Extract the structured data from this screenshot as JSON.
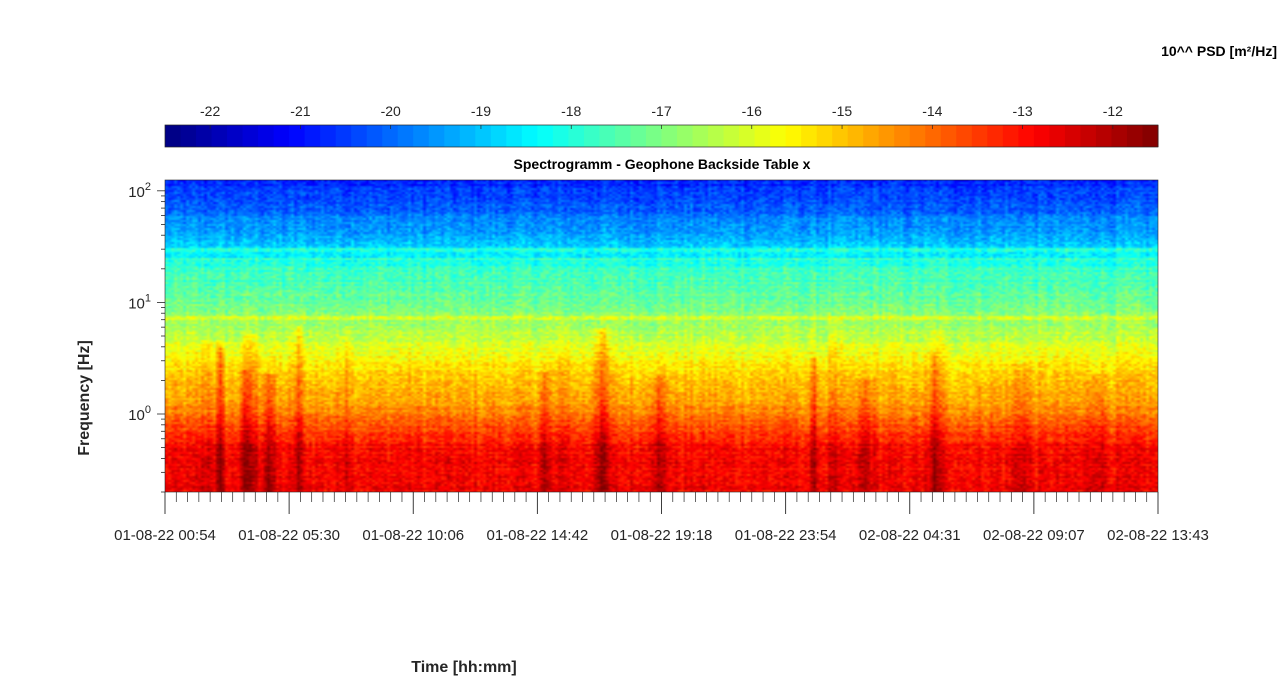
{
  "chart_data": {
    "type": "heatmap",
    "title": "Spectrogramm - Geophone Backside Table x",
    "xlabel": "Time [hh:mm]",
    "ylabel": "Frequency [Hz]",
    "colorbar_label": "10^^ PSD [m²/Hz]",
    "colormap": "jet",
    "y_scale": "log",
    "ylim": [
      0.2,
      125
    ],
    "y_ticks": [
      {
        "value": 1,
        "base": "10",
        "exp": "0"
      },
      {
        "value": 10,
        "base": "10",
        "exp": "1"
      },
      {
        "value": 100,
        "base": "10",
        "exp": "2"
      }
    ],
    "x_ticks": [
      "01-08-22  00:54",
      "01-08-22  05:30",
      "01-08-22  10:06",
      "01-08-22  14:42",
      "01-08-22  19:18",
      "01-08-22  23:54",
      "02-08-22  04:31",
      "02-08-22  09:07",
      "02-08-22  13:43"
    ],
    "color_range": [
      -22.5,
      -11.5
    ],
    "colorbar_ticks": [
      -22,
      -21,
      -20,
      -19,
      -18,
      -17,
      -16,
      -15,
      -14,
      -13,
      -12
    ],
    "psd_profile_log10": [
      {
        "freq_hz": 0.2,
        "psd": -12.8
      },
      {
        "freq_hz": 0.5,
        "psd": -12.9
      },
      {
        "freq_hz": 0.7,
        "psd": -13.5
      },
      {
        "freq_hz": 1.0,
        "psd": -14.3
      },
      {
        "freq_hz": 2.0,
        "psd": -15.0
      },
      {
        "freq_hz": 3.0,
        "psd": -15.5
      },
      {
        "freq_hz": 5.0,
        "psd": -16.4
      },
      {
        "freq_hz": 10.0,
        "psd": -17.2
      },
      {
        "freq_hz": 20.0,
        "psd": -17.8
      },
      {
        "freq_hz": 30.0,
        "psd": -18.8
      },
      {
        "freq_hz": 50.0,
        "psd": -19.6
      },
      {
        "freq_hz": 125.0,
        "psd": -20.8
      }
    ]
  }
}
